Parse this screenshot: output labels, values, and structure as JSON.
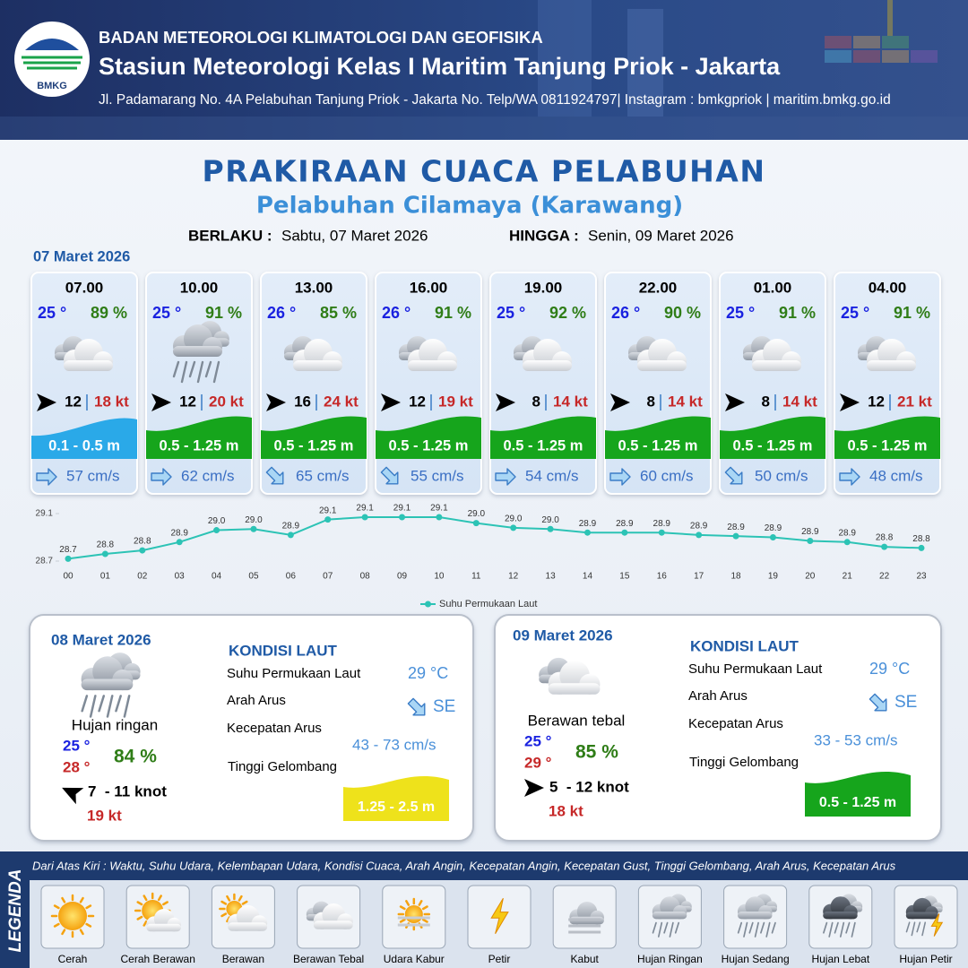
{
  "header": {
    "agency": "BADAN METEOROLOGI KLIMATOLOGI DAN GEOFISIKA",
    "station": "Stasiun Meteorologi Kelas I Maritim Tanjung Priok - Jakarta",
    "address": "Jl. Padamarang No. 4A Pelabuhan Tanjung Priok - Jakarta No. Telp/WA 0811924797| Instagram : bmkgpriok | maritim.bmkg.go.id",
    "logo_text": "BMKG"
  },
  "title": "PRAKIRAAN CUACA PELABUHAN",
  "subtitle": "Pelabuhan Cilamaya (Karawang)",
  "validity": {
    "from_label": "BERLAKU :",
    "from": "Sabtu, 07 Maret 2026",
    "to_label": "HINGGA :",
    "to": "Senin, 09 Maret 2026"
  },
  "day1": {
    "date": "07 Maret 2026",
    "slots": [
      {
        "time": "07.00",
        "temp": "25 °",
        "humidity": "89 %",
        "wind": "12",
        "gust": "18 kt",
        "wave": "0.1 - 0.5 m",
        "wave_color": "#2aa9e8",
        "current": "57 cm/s"
      },
      {
        "time": "10.00",
        "temp": "25 °",
        "humidity": "91 %",
        "wind": "12",
        "gust": "20 kt",
        "wave": "0.5 - 1.25 m",
        "wave_color": "#16a51c",
        "current": "62 cm/s"
      },
      {
        "time": "13.00",
        "temp": "26 °",
        "humidity": "85 %",
        "wind": "16",
        "gust": "24 kt",
        "wave": "0.5 - 1.25 m",
        "wave_color": "#16a51c",
        "current": "65 cm/s"
      },
      {
        "time": "16.00",
        "temp": "26 °",
        "humidity": "91 %",
        "wind": "12",
        "gust": "19 kt",
        "wave": "0.5 - 1.25 m",
        "wave_color": "#16a51c",
        "current": "55 cm/s"
      },
      {
        "time": "19.00",
        "temp": "25 °",
        "humidity": "92 %",
        "wind": "8",
        "gust": "14 kt",
        "wave": "0.5 - 1.25 m",
        "wave_color": "#16a51c",
        "current": "54 cm/s"
      },
      {
        "time": "22.00",
        "temp": "26 °",
        "humidity": "90 %",
        "wind": "8",
        "gust": "14 kt",
        "wave": "0.5 - 1.25 m",
        "wave_color": "#16a51c",
        "current": "60 cm/s"
      },
      {
        "time": "01.00",
        "temp": "25 °",
        "humidity": "91 %",
        "wind": "8",
        "gust": "14 kt",
        "wave": "0.5 - 1.25 m",
        "wave_color": "#16a51c",
        "current": "50 cm/s"
      },
      {
        "time": "04.00",
        "temp": "25 °",
        "humidity": "91 %",
        "wind": "12",
        "gust": "21 kt",
        "wave": "0.5 - 1.25 m",
        "wave_color": "#16a51c",
        "current": "48 cm/s"
      }
    ]
  },
  "sst_chart": {
    "type": "line",
    "categories": [
      "00",
      "01",
      "02",
      "03",
      "04",
      "05",
      "06",
      "07",
      "08",
      "09",
      "10",
      "11",
      "12",
      "13",
      "14",
      "15",
      "16",
      "17",
      "18",
      "19",
      "20",
      "21",
      "22",
      "23"
    ],
    "series_name": "Suhu Permukaan Laut",
    "color": "#2cc3b5",
    "values": [
      28.72,
      28.76,
      28.79,
      28.86,
      28.96,
      28.97,
      28.92,
      29.05,
      29.07,
      29.07,
      29.07,
      29.02,
      28.98,
      28.97,
      28.94,
      28.94,
      28.94,
      28.92,
      28.91,
      28.9,
      28.87,
      28.86,
      28.82,
      28.81
    ],
    "value_labels": [
      "28.7",
      "28.8",
      "28.8",
      "28.9",
      "29.0",
      "29.0",
      "28.9",
      "29.1",
      "29.1",
      "29.1",
      "29.1",
      "29.0",
      "29.0",
      "29.0",
      "28.9",
      "28.9",
      "28.9",
      "28.9",
      "28.9",
      "28.9",
      "28.9",
      "28.9",
      "28.8",
      "28.8"
    ],
    "ylim": [
      28.7,
      29.1
    ],
    "yticks": [
      28.7,
      29.1
    ]
  },
  "days": [
    {
      "date": "08 Maret 2026",
      "weather": "Hujan ringan",
      "temp_min": "25 °",
      "temp_max": "28 °",
      "humidity": "84 %",
      "wind": "7  - 11 knot",
      "gust": "19 kt",
      "sea_heading": "KONDISI LAUT",
      "sst_label": "Suhu Permukaan Laut",
      "sst": "29 °C",
      "current_dir_label": "Arah Arus",
      "current_dir": "SE",
      "current_speed_label": "Kecepatan Arus",
      "current_speed": "43 - 73 cm/s",
      "wave_label": "Tinggi Gelombang",
      "wave": "1.25 - 2.5 m",
      "wave_color": "#eee21b"
    },
    {
      "date": "09 Maret 2026",
      "weather": "Berawan tebal",
      "temp_min": "25 °",
      "temp_max": "29 °",
      "humidity": "85 %",
      "wind": "5  - 12 knot",
      "gust": "18 kt",
      "sea_heading": "KONDISI LAUT",
      "sst_label": "Suhu Permukaan Laut",
      "sst": "29 °C",
      "current_dir_label": "Arah Arus",
      "current_dir": "SE",
      "current_speed_label": "Kecepatan Arus",
      "current_speed": "33 - 53 cm/s",
      "wave_label": "Tinggi Gelombang",
      "wave": "0.5 - 1.25 m",
      "wave_color": "#16a51c"
    }
  ],
  "legend": {
    "label": "LEGENDA",
    "description": "Dari Atas Kiri : Waktu, Suhu Udara, Kelembapan Udara, Kondisi Cuaca, Arah Angin, Kecepatan Angin, Kecepatan Gust, Tinggi Gelombang, Arah Arus, Kecepatan Arus",
    "items": [
      "Cerah",
      "Cerah Berawan",
      "Berawan",
      "Berawan Tebal",
      "Udara Kabur",
      "Petir",
      "Kabut",
      "Hujan Ringan",
      "Hujan Sedang",
      "Hujan Lebat",
      "Hujan Petir"
    ]
  }
}
